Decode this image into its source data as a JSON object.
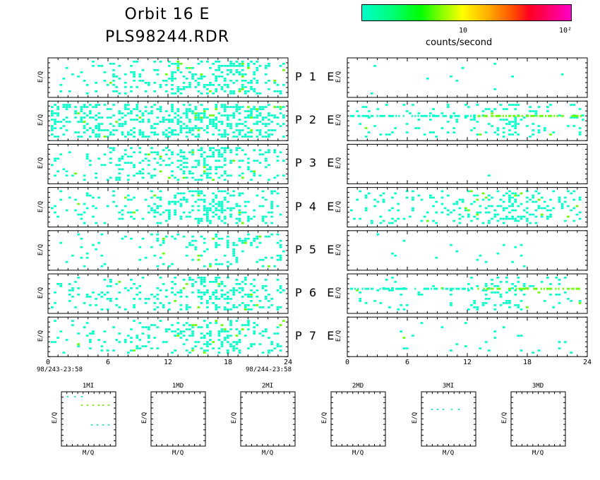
{
  "header": {
    "title_line1": "Orbit 16 E",
    "title_line2": "PLS98244.RDR"
  },
  "colorbar": {
    "tick_10": "10",
    "tick_100": "10²",
    "label": "counts/second",
    "colors": [
      "#00ffc8",
      "#00ff00",
      "#ffff00",
      "#ff5000",
      "#ff0020",
      "#ff00c8"
    ]
  },
  "panels": {
    "ylabel": "E/Q",
    "rows": [
      {
        "p": "P",
        "n": "1",
        "e": "E"
      },
      {
        "p": "P",
        "n": "2",
        "e": "E"
      },
      {
        "p": "P",
        "n": "3",
        "e": "E"
      },
      {
        "p": "P",
        "n": "4",
        "e": "E"
      },
      {
        "p": "P",
        "n": "5",
        "e": "E"
      },
      {
        "p": "P",
        "n": "6",
        "e": "E"
      },
      {
        "p": "P",
        "n": "7",
        "e": "E"
      }
    ],
    "x_ticks": [
      "0",
      "6",
      "12",
      "18",
      "24"
    ],
    "start_date": "98/243-23:58",
    "end_date": "98/244-23:58"
  },
  "small_panels": {
    "xlabel": "M/Q",
    "ylabel": "E/Q",
    "names": [
      "1MI",
      "1MD",
      "2MI",
      "2MD",
      "3MI",
      "3MD"
    ]
  },
  "chart_data": {
    "type": "heatmap",
    "title": "Orbit 16 E PLS98244.RDR",
    "xlabel": "",
    "ylabel": "E/Q",
    "x_range": [
      0,
      24
    ],
    "x_ticks": [
      0,
      6,
      12,
      18,
      24
    ],
    "colorbar": {
      "label": "counts/second",
      "scale": "log",
      "ticks": [
        10,
        100
      ]
    },
    "description_note": "Spectrogram density (approximate, per panel): relative activity 0-1 across time bins",
    "left_column_density": [
      [
        0.15,
        0.2,
        0.25,
        0.3,
        0.45,
        0.6,
        0.55,
        0.4
      ],
      [
        0.55,
        0.5,
        0.55,
        0.55,
        0.6,
        0.65,
        0.65,
        0.6
      ],
      [
        0.15,
        0.2,
        0.3,
        0.35,
        0.5,
        0.6,
        0.55,
        0.35
      ],
      [
        0.1,
        0.15,
        0.2,
        0.3,
        0.55,
        0.6,
        0.45,
        0.3
      ],
      [
        0.05,
        0.1,
        0.1,
        0.15,
        0.15,
        0.3,
        0.35,
        0.2
      ],
      [
        0.2,
        0.25,
        0.25,
        0.3,
        0.45,
        0.5,
        0.45,
        0.3
      ],
      [
        0.2,
        0.2,
        0.2,
        0.25,
        0.45,
        0.5,
        0.45,
        0.3
      ]
    ],
    "right_column_density": [
      [
        0.01,
        0.02,
        0.01,
        0.01,
        0.02,
        0.02,
        0.01,
        0.01
      ],
      [
        0.1,
        0.1,
        0.1,
        0.1,
        0.25,
        0.35,
        0.3,
        0.15
      ],
      [
        0.0,
        0.0,
        0.0,
        0.0,
        0.01,
        0.0,
        0.0,
        0.0
      ],
      [
        0.2,
        0.2,
        0.2,
        0.25,
        0.4,
        0.55,
        0.45,
        0.3
      ],
      [
        0.02,
        0.03,
        0.02,
        0.03,
        0.04,
        0.05,
        0.03,
        0.02
      ],
      [
        0.1,
        0.08,
        0.08,
        0.1,
        0.25,
        0.3,
        0.2,
        0.1
      ],
      [
        0.02,
        0.03,
        0.02,
        0.03,
        0.06,
        0.08,
        0.04,
        0.02
      ]
    ],
    "right_bands": [
      {
        "panel": 2,
        "energy_fraction": 0.65,
        "x": [
          0,
          24
        ],
        "color": "#66ff00"
      },
      {
        "panel": 6,
        "energy_fraction": 0.65,
        "x": [
          0,
          24
        ],
        "color": "#66ff00"
      }
    ]
  }
}
